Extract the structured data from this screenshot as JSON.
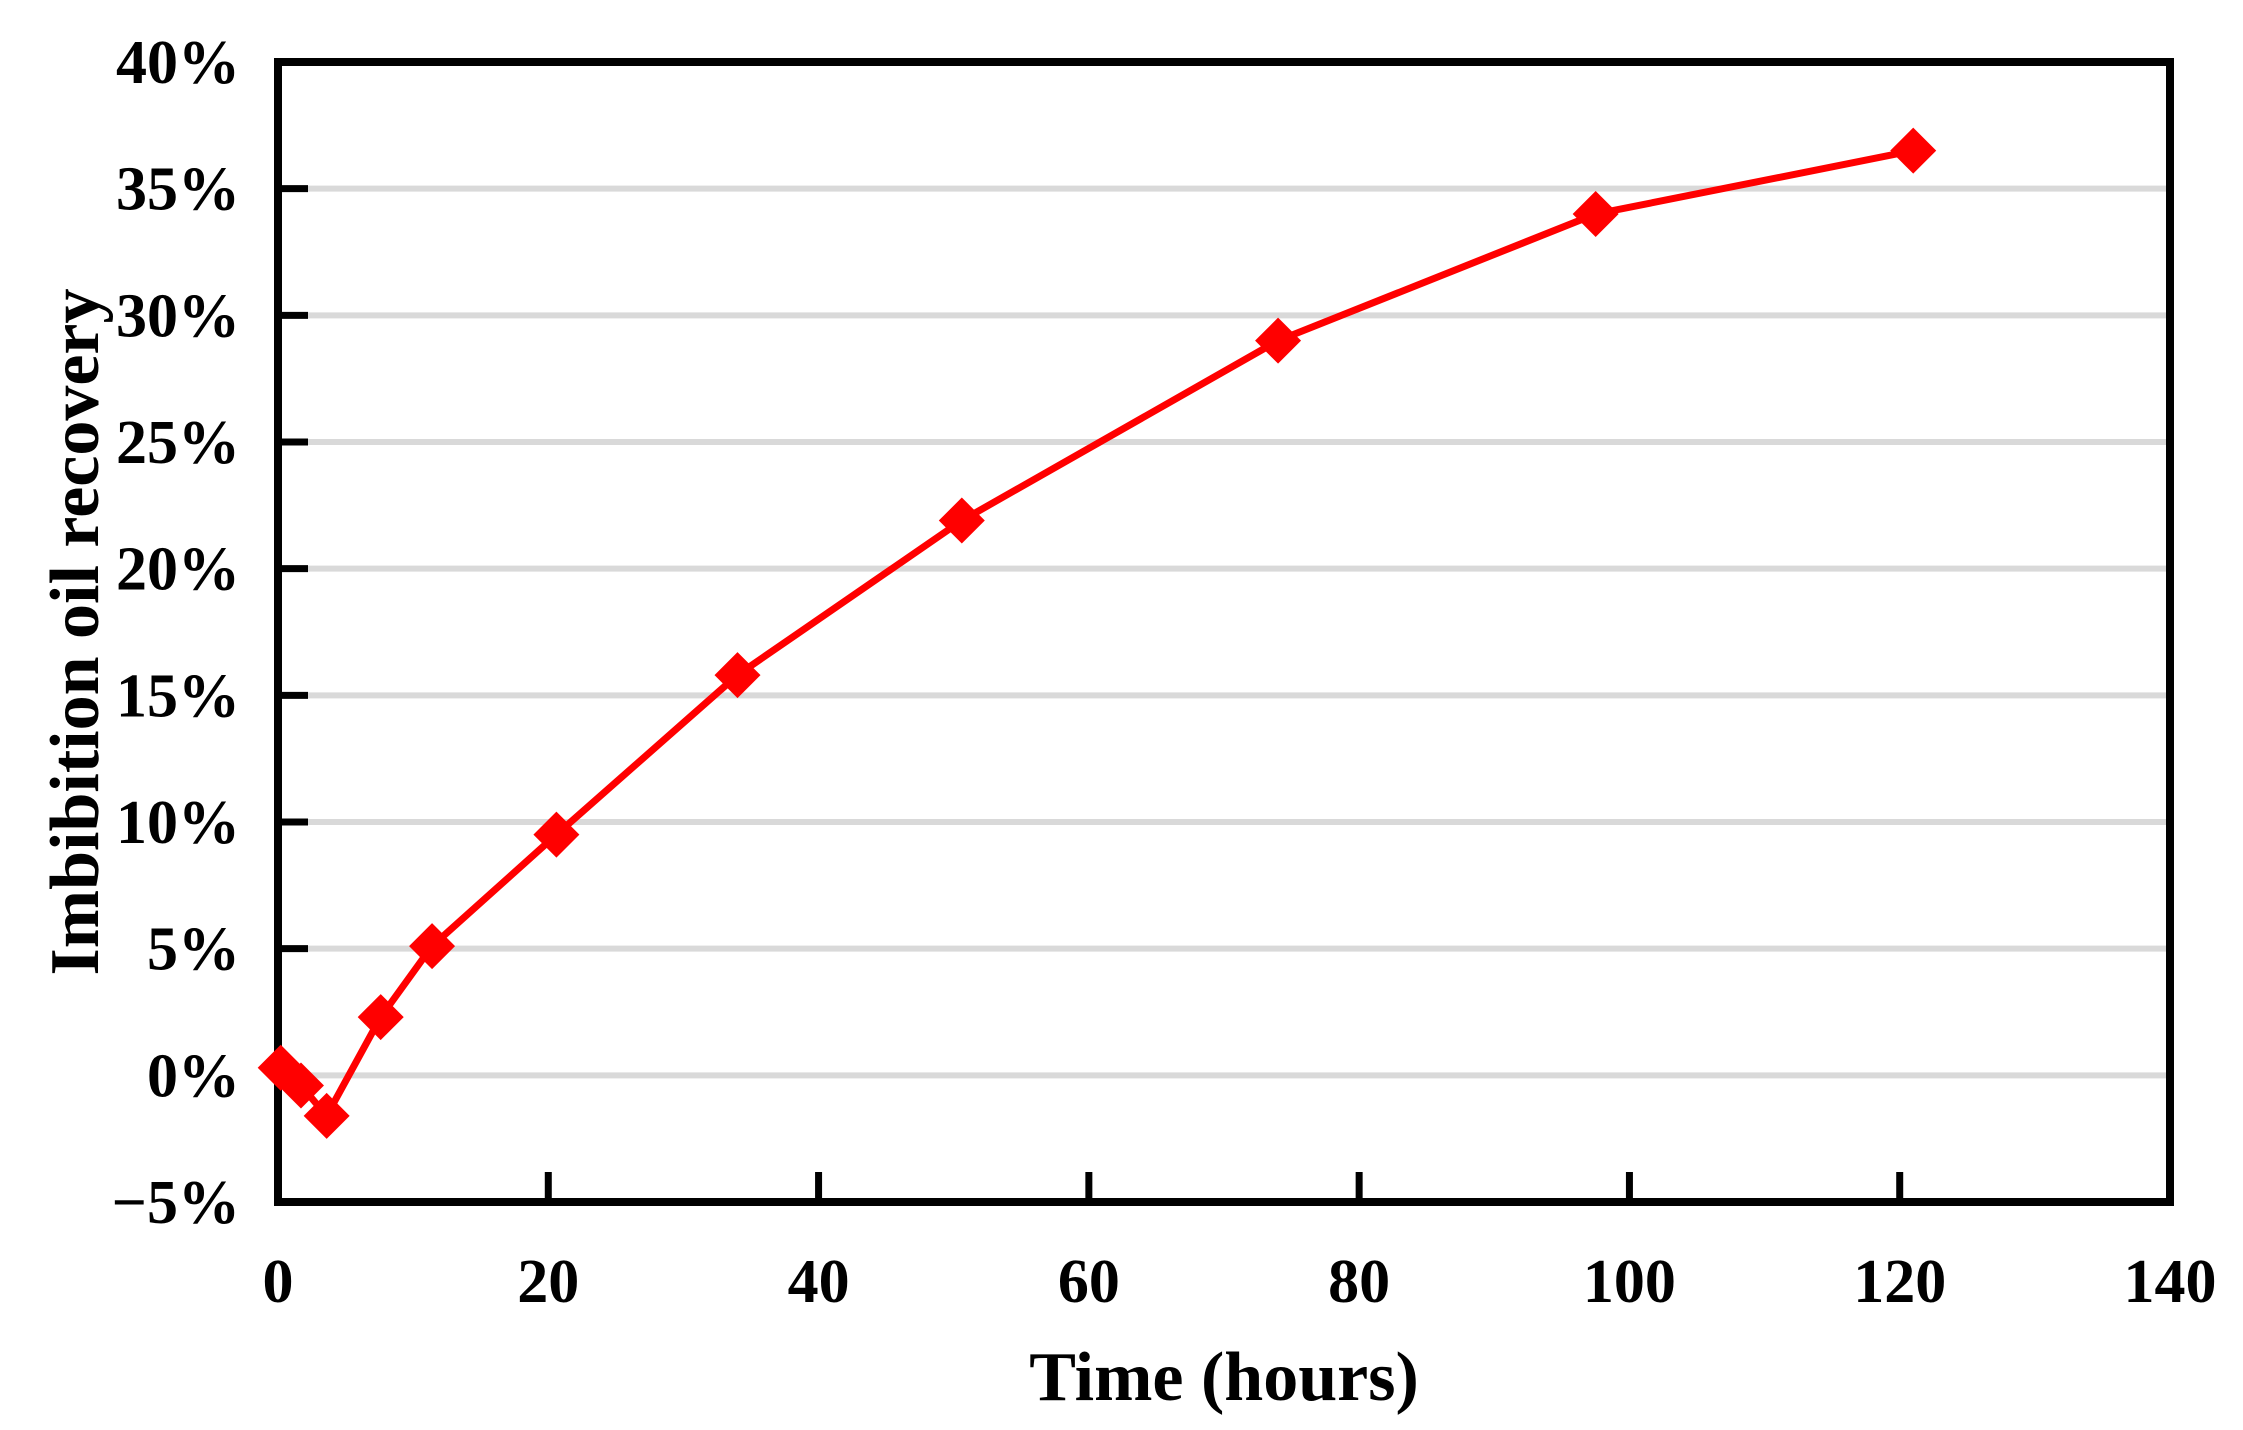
{
  "chart_data": {
    "type": "line",
    "title": "",
    "xlabel": "Time (hours)",
    "ylabel": "Imbibition oil recovery",
    "xlim": [
      0,
      140
    ],
    "ylim": [
      -5,
      40
    ],
    "xticks": [
      0,
      20,
      40,
      60,
      80,
      100,
      120,
      140
    ],
    "yticks": [
      {
        "value": 40,
        "label": "40%"
      },
      {
        "value": 35,
        "label": "35%"
      },
      {
        "value": 30,
        "label": "30%"
      },
      {
        "value": 25,
        "label": "25%"
      },
      {
        "value": 20,
        "label": "20%"
      },
      {
        "value": 15,
        "label": "15%"
      },
      {
        "value": 10,
        "label": "10%"
      },
      {
        "value": 5,
        "label": "5%"
      },
      {
        "value": 0,
        "label": "0%"
      },
      {
        "value": -5,
        "label": "−5%"
      }
    ],
    "grid": "horizontal-only",
    "legend": "none",
    "series": [
      {
        "name": "Imbibition oil recovery",
        "marker": "diamond",
        "color": "#FF0000",
        "points": [
          {
            "x": 0.2,
            "y": 0.3
          },
          {
            "x": 1.7,
            "y": -0.4
          },
          {
            "x": 3.6,
            "y": -1.6
          },
          {
            "x": 7.6,
            "y": 2.3
          },
          {
            "x": 11.4,
            "y": 5.1
          },
          {
            "x": 20.6,
            "y": 9.5
          },
          {
            "x": 34,
            "y": 15.8
          },
          {
            "x": 50.6,
            "y": 21.9
          },
          {
            "x": 74,
            "y": 29.0
          },
          {
            "x": 97.5,
            "y": 34.0
          },
          {
            "x": 121,
            "y": 36.5
          }
        ]
      }
    ],
    "colors": {
      "line": "#FF0000",
      "marker": "#FF0000",
      "grid": "#D9D9D9",
      "frame": "#000000",
      "text": "#000000",
      "background": "#FFFFFF"
    }
  }
}
